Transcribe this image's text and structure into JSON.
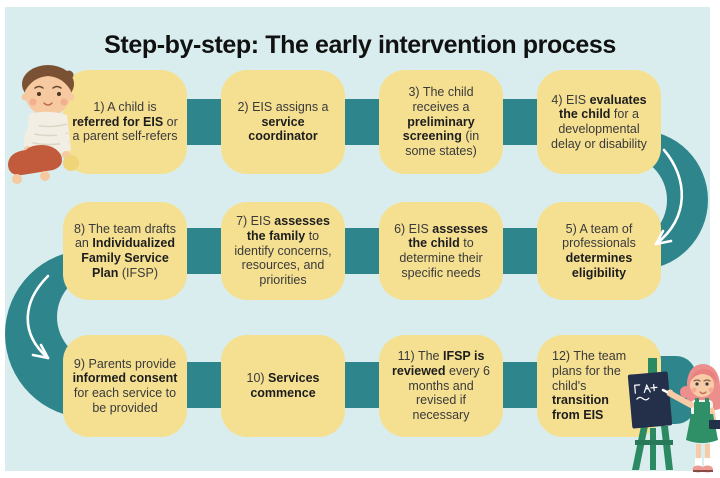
{
  "title": "Step-by-step: The early intervention process",
  "steps": [
    {
      "segments": [
        {
          "t": "1) A child is ",
          "b": false
        },
        {
          "t": "referred for EIS",
          "b": true
        },
        {
          "t": " or a parent self-refers",
          "b": false
        }
      ]
    },
    {
      "segments": [
        {
          "t": "2) EIS assigns a ",
          "b": false
        },
        {
          "t": "service coordinator",
          "b": true
        }
      ]
    },
    {
      "segments": [
        {
          "t": "3) The child receives a ",
          "b": false
        },
        {
          "t": "preliminary screening",
          "b": true
        },
        {
          "t": " (in some states)",
          "b": false
        }
      ]
    },
    {
      "segments": [
        {
          "t": "4) EIS ",
          "b": false
        },
        {
          "t": "evaluates the child",
          "b": true
        },
        {
          "t": " for a developmental delay or disability",
          "b": false
        }
      ]
    },
    {
      "segments": [
        {
          "t": "5) A team of professionals ",
          "b": false
        },
        {
          "t": "determines eligibility",
          "b": true
        }
      ]
    },
    {
      "segments": [
        {
          "t": "6) EIS ",
          "b": false
        },
        {
          "t": "assesses the child",
          "b": true
        },
        {
          "t": " to determine their specific needs",
          "b": false
        }
      ]
    },
    {
      "segments": [
        {
          "t": "7) EIS ",
          "b": false
        },
        {
          "t": "assesses the family",
          "b": true
        },
        {
          "t": " to identify concerns, resources, and priorities",
          "b": false
        }
      ]
    },
    {
      "segments": [
        {
          "t": "8) The team drafts an ",
          "b": false
        },
        {
          "t": "Individualized Family Service Plan",
          "b": true
        },
        {
          "t": " (IFSP)",
          "b": false
        }
      ]
    },
    {
      "segments": [
        {
          "t": "9) Parents provide ",
          "b": false
        },
        {
          "t": "informed consent",
          "b": true
        },
        {
          "t": " for each service to be provided",
          "b": false
        }
      ]
    },
    {
      "segments": [
        {
          "t": "10) ",
          "b": false
        },
        {
          "t": "Services commence",
          "b": true
        }
      ]
    },
    {
      "segments": [
        {
          "t": "11) The ",
          "b": false
        },
        {
          "t": "IFSP is reviewed",
          "b": true
        },
        {
          "t": " every 6 months and revised if necessary",
          "b": false
        }
      ]
    },
    {
      "segments": [
        {
          "t": "12) The team plans for the child's ",
          "b": false
        },
        {
          "t": "transition from EIS",
          "b": true
        }
      ]
    }
  ],
  "colors": {
    "background": "#d9edee",
    "step_box": "#f5e092",
    "flow": "#2e868c",
    "title_text": "#111111",
    "body_text": "#3a3a3a",
    "bold_text": "#1d1d1d"
  },
  "icons": {
    "flow_arrow_right": "curved-white-arrow-down-left",
    "flow_arrow_left": "curved-white-arrow-down-right"
  },
  "illustrations": {
    "baby": "crawling-toddler",
    "teacher": "girl-writing-on-chalkboard-easel"
  }
}
